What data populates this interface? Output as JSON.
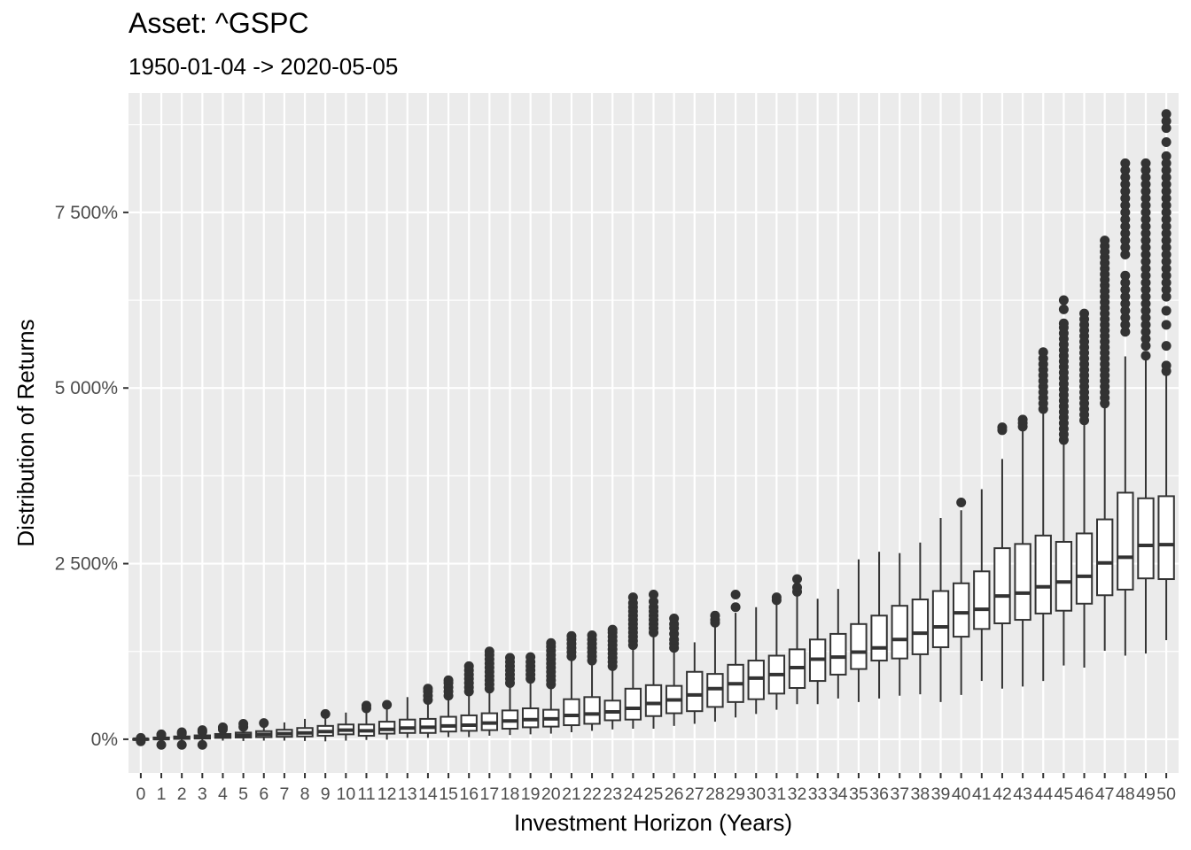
{
  "chart_data": {
    "type": "boxplot",
    "title": "Asset: ^GSPC",
    "subtitle": "1950-01-04 -> 2020-05-05",
    "xlabel": "Investment Horizon (Years)",
    "ylabel": "Distribution of Returns",
    "y_ticks": [
      {
        "value": 0,
        "label": "0%"
      },
      {
        "value": 2500,
        "label": "2 500%"
      },
      {
        "value": 5000,
        "label": "5 000%"
      },
      {
        "value": 7500,
        "label": "7 500%"
      }
    ],
    "ylim": [
      -480,
      9200
    ],
    "grid": true,
    "legend": "none",
    "colors": {
      "panel": "#ebebeb",
      "grid": "#ffffff",
      "box_fill": "#ffffff",
      "box_line": "#333333",
      "outlier": "#333333"
    },
    "categories": [
      "0",
      "1",
      "2",
      "3",
      "4",
      "5",
      "6",
      "7",
      "8",
      "9",
      "10",
      "11",
      "12",
      "13",
      "14",
      "15",
      "16",
      "17",
      "18",
      "19",
      "20",
      "21",
      "22",
      "23",
      "24",
      "25",
      "26",
      "27",
      "28",
      "29",
      "30",
      "31",
      "32",
      "33",
      "34",
      "35",
      "36",
      "37",
      "38",
      "39",
      "40",
      "41",
      "42",
      "43",
      "44",
      "45",
      "46",
      "47",
      "48",
      "49",
      "50"
    ],
    "boxes": [
      {
        "low": -20,
        "q1": -5,
        "median": 0,
        "q3": 5,
        "high": 15,
        "outliers": [
          -30,
          20
        ]
      },
      {
        "low": -30,
        "q1": 0,
        "median": 10,
        "q3": 25,
        "high": 50,
        "outliers": [
          -80,
          60,
          70
        ]
      },
      {
        "low": -40,
        "q1": 5,
        "median": 20,
        "q3": 40,
        "high": 70,
        "outliers": [
          -80,
          80,
          100
        ]
      },
      {
        "low": -50,
        "q1": 10,
        "median": 30,
        "q3": 55,
        "high": 95,
        "outliers": [
          -80,
          105,
          130
        ]
      },
      {
        "low": -20,
        "q1": 20,
        "median": 45,
        "q3": 75,
        "high": 130,
        "outliers": [
          140,
          170
        ]
      },
      {
        "low": -25,
        "q1": 25,
        "median": 55,
        "q3": 95,
        "high": 165,
        "outliers": [
          175,
          220
        ]
      },
      {
        "low": -20,
        "q1": 30,
        "median": 70,
        "q3": 115,
        "high": 190,
        "outliers": [
          230
        ]
      },
      {
        "low": -20,
        "q1": 35,
        "median": 80,
        "q3": 135,
        "high": 240,
        "outliers": []
      },
      {
        "low": -25,
        "q1": 40,
        "median": 90,
        "q3": 160,
        "high": 290,
        "outliers": []
      },
      {
        "low": -30,
        "q1": 50,
        "median": 110,
        "q3": 190,
        "high": 300,
        "outliers": [
          360
        ]
      },
      {
        "low": -20,
        "q1": 70,
        "median": 130,
        "q3": 210,
        "high": 380,
        "outliers": []
      },
      {
        "low": -10,
        "q1": 50,
        "median": 120,
        "q3": 210,
        "high": 400,
        "outliers": [
          440,
          480
        ]
      },
      {
        "low": -5,
        "q1": 80,
        "median": 140,
        "q3": 250,
        "high": 430,
        "outliers": [
          490
        ]
      },
      {
        "low": 20,
        "q1": 90,
        "median": 160,
        "q3": 280,
        "high": 600,
        "outliers": []
      },
      {
        "low": 20,
        "q1": 90,
        "median": 170,
        "q3": 290,
        "high": 550,
        "outliers": [
          560,
          620,
          680,
          720
        ]
      },
      {
        "low": 30,
        "q1": 110,
        "median": 190,
        "q3": 320,
        "high": 600,
        "outliers": [
          620,
          680,
          740,
          800,
          840
        ]
      },
      {
        "low": 30,
        "q1": 120,
        "median": 200,
        "q3": 340,
        "high": 650,
        "outliers": [
          680,
          740,
          800,
          860,
          920,
          980,
          1040
        ]
      },
      {
        "low": 50,
        "q1": 130,
        "median": 230,
        "q3": 370,
        "high": 700,
        "outliers": [
          720,
          780,
          840,
          900,
          960,
          1020,
          1080,
          1140,
          1200,
          1250
        ]
      },
      {
        "low": 60,
        "q1": 150,
        "median": 260,
        "q3": 410,
        "high": 760,
        "outliers": [
          800,
          860,
          920,
          980,
          1040,
          1100,
          1160
        ]
      },
      {
        "low": 70,
        "q1": 170,
        "median": 280,
        "q3": 440,
        "high": 820,
        "outliers": [
          860,
          920,
          980,
          1040,
          1100,
          1170
        ]
      },
      {
        "low": 80,
        "q1": 180,
        "median": 290,
        "q3": 420,
        "high": 800,
        "outliers": [
          780,
          840,
          900,
          960,
          1020,
          1080,
          1140,
          1200,
          1260,
          1320,
          1370
        ]
      },
      {
        "low": 100,
        "q1": 200,
        "median": 340,
        "q3": 570,
        "high": 1140,
        "outliers": [
          1180,
          1240,
          1300,
          1360,
          1420,
          1470
        ]
      },
      {
        "low": 120,
        "q1": 220,
        "median": 360,
        "q3": 600,
        "high": 1080,
        "outliers": [
          1120,
          1180,
          1240,
          1300,
          1360,
          1420,
          1480
        ]
      },
      {
        "low": 140,
        "q1": 270,
        "median": 390,
        "q3": 550,
        "high": 1000,
        "outliers": [
          1040,
          1100,
          1160,
          1220,
          1280,
          1340,
          1400,
          1460,
          1520,
          1560
        ]
      },
      {
        "low": 150,
        "q1": 280,
        "median": 440,
        "q3": 720,
        "high": 1300,
        "outliers": [
          1340,
          1400,
          1460,
          1520,
          1580,
          1640,
          1700,
          1760,
          1820,
          1880,
          1940,
          2020
        ]
      },
      {
        "low": 150,
        "q1": 330,
        "median": 510,
        "q3": 770,
        "high": 1480,
        "outliers": [
          1520,
          1580,
          1640,
          1700,
          1760,
          1820,
          1880,
          1960,
          2060
        ]
      },
      {
        "low": 190,
        "q1": 370,
        "median": 560,
        "q3": 760,
        "high": 1260,
        "outliers": [
          1300,
          1360,
          1420,
          1500,
          1580,
          1640,
          1720
        ]
      },
      {
        "low": 220,
        "q1": 400,
        "median": 630,
        "q3": 960,
        "high": 1380,
        "outliers": []
      },
      {
        "low": 250,
        "q1": 460,
        "median": 720,
        "q3": 930,
        "high": 1630,
        "outliers": [
          1660,
          1700,
          1760
        ]
      },
      {
        "low": 310,
        "q1": 530,
        "median": 790,
        "q3": 1060,
        "high": 1800,
        "outliers": [
          1880,
          2060
        ]
      },
      {
        "low": 360,
        "q1": 570,
        "median": 870,
        "q3": 1120,
        "high": 1880,
        "outliers": []
      },
      {
        "low": 420,
        "q1": 650,
        "median": 920,
        "q3": 1190,
        "high": 1960,
        "outliers": [
          1980,
          2020
        ]
      },
      {
        "low": 500,
        "q1": 730,
        "median": 1020,
        "q3": 1280,
        "high": 2080,
        "outliers": [
          2100,
          2160,
          2280
        ]
      },
      {
        "low": 500,
        "q1": 830,
        "median": 1140,
        "q3": 1420,
        "high": 2000,
        "outliers": []
      },
      {
        "low": 580,
        "q1": 920,
        "median": 1170,
        "q3": 1500,
        "high": 2140,
        "outliers": []
      },
      {
        "low": 530,
        "q1": 1000,
        "median": 1240,
        "q3": 1640,
        "high": 2560,
        "outliers": []
      },
      {
        "low": 580,
        "q1": 1120,
        "median": 1300,
        "q3": 1760,
        "high": 2670,
        "outliers": []
      },
      {
        "low": 620,
        "q1": 1150,
        "median": 1420,
        "q3": 1900,
        "high": 2650,
        "outliers": []
      },
      {
        "low": 640,
        "q1": 1210,
        "median": 1510,
        "q3": 1990,
        "high": 2800,
        "outliers": []
      },
      {
        "low": 530,
        "q1": 1310,
        "median": 1600,
        "q3": 2110,
        "high": 3150,
        "outliers": []
      },
      {
        "low": 630,
        "q1": 1460,
        "median": 1800,
        "q3": 2220,
        "high": 3260,
        "outliers": [
          3370
        ]
      },
      {
        "low": 830,
        "q1": 1570,
        "median": 1850,
        "q3": 2390,
        "high": 3560,
        "outliers": []
      },
      {
        "low": 720,
        "q1": 1650,
        "median": 2040,
        "q3": 2720,
        "high": 3990,
        "outliers": [
          4400,
          4440
        ]
      },
      {
        "low": 750,
        "q1": 1700,
        "median": 2080,
        "q3": 2780,
        "high": 4400,
        "outliers": [
          4450,
          4500,
          4550
        ]
      },
      {
        "low": 830,
        "q1": 1790,
        "median": 2170,
        "q3": 2900,
        "high": 4660,
        "outliers": [
          4700,
          4780,
          4860,
          4940,
          5020,
          5100,
          5180,
          5260,
          5340,
          5420,
          5510
        ]
      },
      {
        "low": 1050,
        "q1": 1830,
        "median": 2240,
        "q3": 2810,
        "high": 4220,
        "outliers": [
          4260,
          4340,
          4420,
          4500,
          4580,
          4660,
          4740,
          4820,
          4900,
          4980,
          5060,
          5140,
          5220,
          5300,
          5380,
          5460,
          5540,
          5620,
          5700,
          5780,
          5860,
          5920,
          6120,
          6250
        ]
      },
      {
        "low": 1020,
        "q1": 1930,
        "median": 2320,
        "q3": 2930,
        "high": 4500,
        "outliers": [
          4540,
          4620,
          4700,
          4780,
          4860,
          4940,
          5020,
          5100,
          5180,
          5260,
          5340,
          5420,
          5500,
          5580,
          5660,
          5740,
          5820,
          5900,
          5980,
          6060
        ]
      },
      {
        "low": 1260,
        "q1": 2050,
        "median": 2510,
        "q3": 3130,
        "high": 4740,
        "outliers": [
          4780,
          4860,
          4940,
          5020,
          5100,
          5180,
          5260,
          5340,
          5420,
          5500,
          5580,
          5660,
          5740,
          5820,
          5900,
          5980,
          6060,
          6140,
          6220,
          6300,
          6380,
          6460,
          6540,
          6620,
          6700,
          6780,
          6860,
          6940,
          7020,
          7100
        ]
      },
      {
        "low": 1190,
        "q1": 2130,
        "median": 2590,
        "q3": 3510,
        "high": 5450,
        "outliers": [
          5800,
          5900,
          6000,
          6100,
          6200,
          6300,
          6400,
          6500,
          6600,
          6900,
          7000,
          7100,
          7200,
          7300,
          7400,
          7500,
          7600,
          7700,
          7800,
          7900,
          8000,
          8100,
          8200
        ]
      },
      {
        "low": 1220,
        "q1": 2290,
        "median": 2760,
        "q3": 3430,
        "high": 5400,
        "outliers": [
          5460,
          5600,
          5700,
          5800,
          5900,
          6000,
          6100,
          6200,
          6300,
          6400,
          6500,
          6600,
          6700,
          6800,
          6900,
          7000,
          7100,
          7200,
          7300,
          7400,
          7500,
          7600,
          7700,
          7800,
          7900,
          8000,
          8100,
          8200
        ]
      },
      {
        "low": 1410,
        "q1": 2280,
        "median": 2770,
        "q3": 3460,
        "high": 5200,
        "outliers": [
          5240,
          5320,
          5600,
          5900,
          6100,
          6300,
          6400,
          6500,
          6600,
          6700,
          6800,
          6900,
          7000,
          7100,
          7200,
          7300,
          7400,
          7500,
          7600,
          7700,
          7800,
          7900,
          8000,
          8100,
          8200,
          8300,
          8500,
          8700,
          8800,
          8900
        ]
      }
    ]
  }
}
